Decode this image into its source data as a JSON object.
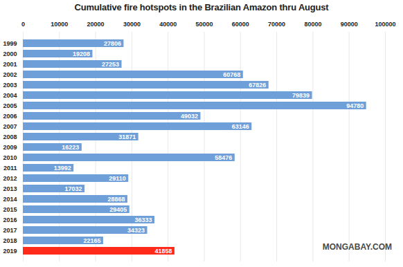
{
  "chart_data": {
    "type": "bar",
    "orientation": "horizontal",
    "title": "Cumulative fire hotspots in the Brazilian Amazon thru August",
    "categories": [
      "1999",
      "2000",
      "2001",
      "2002",
      "2003",
      "2004",
      "2005",
      "2006",
      "2007",
      "2008",
      "2009",
      "2010",
      "2011",
      "2012",
      "2013",
      "2014",
      "2015",
      "2016",
      "2017",
      "2018",
      "2019"
    ],
    "values": [
      27806,
      19208,
      27253,
      60768,
      67826,
      79839,
      94780,
      49032,
      63146,
      31871,
      16223,
      58476,
      13992,
      29110,
      17032,
      28868,
      29405,
      36333,
      34323,
      22165,
      41858
    ],
    "colors": [
      "#6f9fd8",
      "#6f9fd8",
      "#6f9fd8",
      "#6f9fd8",
      "#6f9fd8",
      "#6f9fd8",
      "#6f9fd8",
      "#6f9fd8",
      "#6f9fd8",
      "#6f9fd8",
      "#6f9fd8",
      "#6f9fd8",
      "#6f9fd8",
      "#6f9fd8",
      "#6f9fd8",
      "#6f9fd8",
      "#6f9fd8",
      "#6f9fd8",
      "#6f9fd8",
      "#6f9fd8",
      "#ff2a1a"
    ],
    "xlim": [
      0,
      100000
    ],
    "xticks": [
      0,
      10000,
      20000,
      30000,
      40000,
      50000,
      60000,
      70000,
      80000,
      90000,
      100000
    ],
    "grid": true,
    "data_labels": true,
    "annotations": [
      "MONGABAY.COM"
    ]
  }
}
